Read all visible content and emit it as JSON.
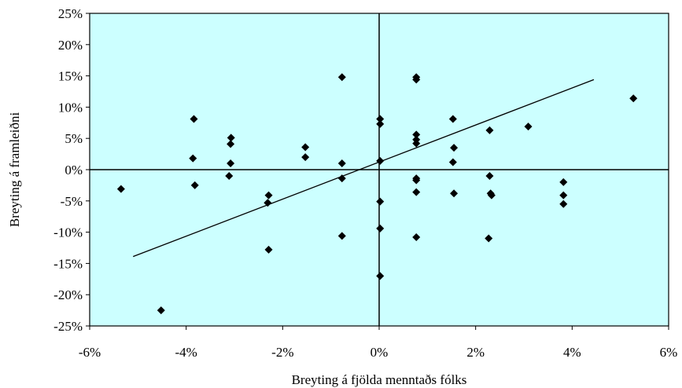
{
  "chart_data": {
    "type": "scatter",
    "xlabel": "Breyting á fjölda menntaðs fólks",
    "ylabel": "Breyting á framleiðni",
    "xlim": [
      -0.06,
      0.06
    ],
    "ylim": [
      -0.25,
      0.25
    ],
    "x_ticks": [
      -0.06,
      -0.04,
      -0.02,
      0,
      0.02,
      0.04,
      0.06
    ],
    "y_ticks": [
      0.25,
      0.2,
      0.15,
      0.1,
      0.05,
      0,
      -0.05,
      -0.1,
      -0.15,
      -0.2,
      -0.25
    ],
    "x_tick_labels": [
      "-6%",
      "-4%",
      "-2%",
      "0%",
      "2%",
      "4%",
      "6%"
    ],
    "y_tick_labels": [
      "25%",
      "20%",
      "15%",
      "10%",
      "5%",
      "0%",
      "-5%",
      "-10%",
      "-15%",
      "-20%",
      "-25%"
    ],
    "grid": false,
    "plot_background": "#ccffff",
    "marker_color": "#000000",
    "marker_shape": "diamond",
    "points": [
      {
        "x": -0.0535,
        "y": -0.031
      },
      {
        "x": -0.0452,
        "y": -0.225
      },
      {
        "x": -0.0384,
        "y": 0.081
      },
      {
        "x": -0.0386,
        "y": 0.018
      },
      {
        "x": -0.0382,
        "y": -0.025
      },
      {
        "x": -0.0307,
        "y": 0.051
      },
      {
        "x": -0.0308,
        "y": 0.041
      },
      {
        "x": -0.0308,
        "y": 0.01
      },
      {
        "x": -0.0311,
        "y": -0.01
      },
      {
        "x": -0.0229,
        "y": -0.041
      },
      {
        "x": -0.0231,
        "y": -0.053
      },
      {
        "x": -0.0229,
        "y": -0.128
      },
      {
        "x": -0.0153,
        "y": 0.036
      },
      {
        "x": -0.0153,
        "y": 0.02
      },
      {
        "x": -0.0077,
        "y": 0.148
      },
      {
        "x": -0.0077,
        "y": 0.01
      },
      {
        "x": -0.0077,
        "y": -0.014
      },
      {
        "x": -0.0077,
        "y": -0.106
      },
      {
        "x": 0.0002,
        "y": 0.081
      },
      {
        "x": 0.0002,
        "y": 0.073
      },
      {
        "x": 0.0002,
        "y": 0.014
      },
      {
        "x": 0.0002,
        "y": -0.051
      },
      {
        "x": 0.0002,
        "y": -0.094
      },
      {
        "x": 0.0002,
        "y": -0.17
      },
      {
        "x": 0.0077,
        "y": 0.148
      },
      {
        "x": 0.0077,
        "y": 0.144
      },
      {
        "x": 0.0077,
        "y": 0.056
      },
      {
        "x": 0.0077,
        "y": 0.048
      },
      {
        "x": 0.0077,
        "y": 0.042
      },
      {
        "x": 0.0077,
        "y": -0.014
      },
      {
        "x": 0.0077,
        "y": -0.017
      },
      {
        "x": 0.0077,
        "y": -0.036
      },
      {
        "x": 0.0077,
        "y": -0.108
      },
      {
        "x": 0.0153,
        "y": 0.081
      },
      {
        "x": 0.0155,
        "y": 0.035
      },
      {
        "x": 0.0153,
        "y": 0.012
      },
      {
        "x": 0.0155,
        "y": -0.038
      },
      {
        "x": 0.0229,
        "y": 0.063
      },
      {
        "x": 0.0229,
        "y": -0.01
      },
      {
        "x": 0.0231,
        "y": -0.038
      },
      {
        "x": 0.0233,
        "y": -0.041
      },
      {
        "x": 0.0227,
        "y": -0.11
      },
      {
        "x": 0.0309,
        "y": 0.069
      },
      {
        "x": 0.0382,
        "y": -0.02
      },
      {
        "x": 0.0382,
        "y": -0.041
      },
      {
        "x": 0.0382,
        "y": -0.055
      },
      {
        "x": 0.0527,
        "y": 0.114
      }
    ],
    "trendline": {
      "x": [
        -0.051,
        0.0445
      ],
      "y": [
        -0.139,
        0.144
      ]
    }
  }
}
